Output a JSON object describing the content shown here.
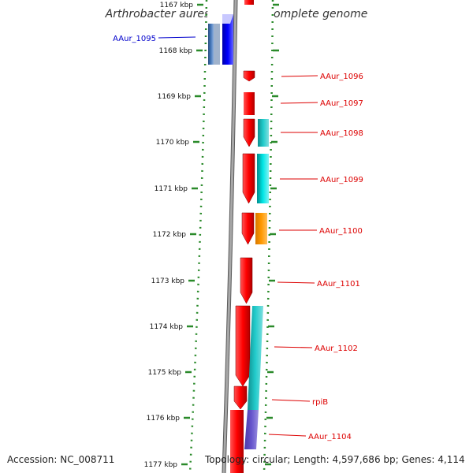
{
  "title": "Arthrobacter aurescens TC1, complete genome",
  "footer": {
    "accession": "Accession: NC_008711",
    "topology": "Topology: circular; Length: 4,597,686 bp; Genes: 4,114"
  },
  "colors": {
    "tick": "#2a8a2a",
    "ruler": "#8a8a8a",
    "label_red": "#dd0000",
    "label_blue": "#0000cc"
  },
  "ticks": [
    {
      "label": "1167 kbp"
    },
    {
      "label": "1168 kbp"
    },
    {
      "label": "1169 kbp"
    },
    {
      "label": "1170 kbp"
    },
    {
      "label": "1171 kbp"
    },
    {
      "label": "1172 kbp"
    },
    {
      "label": "1173 kbp"
    },
    {
      "label": "1174 kbp"
    },
    {
      "label": "1175 kbp"
    },
    {
      "label": "1176 kbp"
    },
    {
      "label": "1177 kbp"
    }
  ],
  "genes": [
    {
      "name": "AAur_1095",
      "color": "#0000ee"
    },
    {
      "name": "AAur_1096",
      "color": "#ee0000"
    },
    {
      "name": "AAur_1097",
      "color": "#ee0000"
    },
    {
      "name": "AAur_1098",
      "color": "#ee0000"
    },
    {
      "name": "AAur_1099",
      "color": "#ee0000"
    },
    {
      "name": "AAur_1100",
      "color": "#ee0000"
    },
    {
      "name": "AAur_1101",
      "color": "#ee0000"
    },
    {
      "name": "AAur_1102",
      "color": "#ee0000"
    },
    {
      "name": "rpiB",
      "color": "#ee0000"
    },
    {
      "name": "AAur_1104",
      "color": "#ee0000"
    }
  ]
}
